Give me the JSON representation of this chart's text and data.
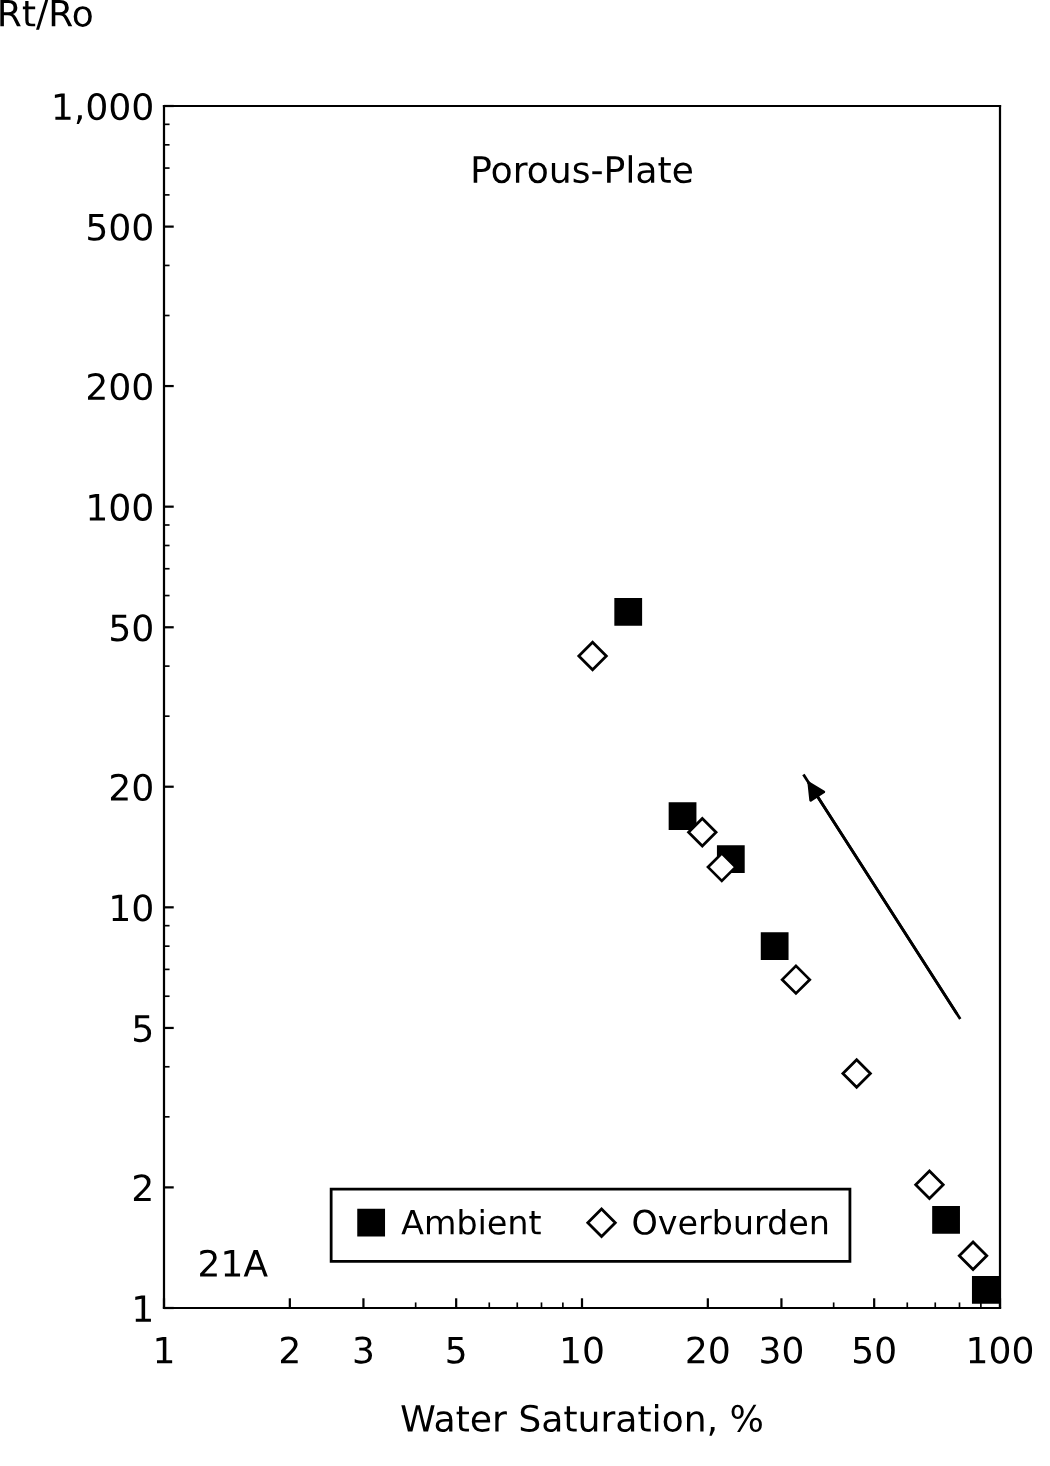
{
  "chart_data": {
    "type": "scatter",
    "ylabel": "Rt/Ro",
    "xlabel": "Water Saturation, %",
    "annotations": [
      "Porous-Plate",
      "21A"
    ],
    "log": "xy",
    "grid": false,
    "legend": "bottom",
    "xlim": [
      1,
      100
    ],
    "xticks": [
      1,
      2,
      3,
      5,
      10,
      20,
      30,
      50,
      100
    ],
    "ylim": [
      1,
      1000
    ],
    "yticks": [
      1,
      2,
      5,
      10,
      20,
      50,
      100,
      200,
      500,
      {
        "value": 1000,
        "label": "1,000"
      }
    ],
    "series": [
      {
        "name": "Ambient",
        "color": "#000000",
        "marker": "square",
        "x": [
          12.9,
          17.4,
          22.7,
          28.9,
          74.3,
          92.5
        ],
        "values": [
          54.6,
          16.9,
          13.2,
          8.0,
          1.66,
          1.11
        ]
      },
      {
        "name": "Overburden",
        "color": "#000000",
        "marker": "diamond",
        "x": [
          10.6,
          19.4,
          21.6,
          32.5,
          45.4,
          67.8,
          86.2
        ],
        "values": [
          42.4,
          15.4,
          12.6,
          6.6,
          3.85,
          2.03,
          1.35
        ]
      },
      {
        "type": "line",
        "color": "#000000",
        "x": [
          80,
          34
        ],
        "values": [
          5.3,
          21.3
        ]
      }
    ]
  }
}
